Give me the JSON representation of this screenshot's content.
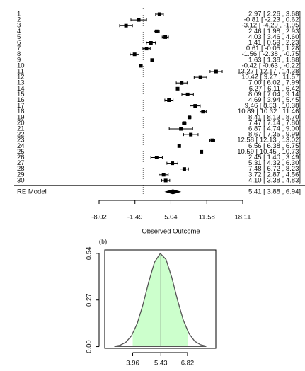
{
  "chart_data": [
    {
      "type": "forest",
      "categories": [
        "1",
        "2",
        "3",
        "4",
        "5",
        "6",
        "7",
        "8",
        "9",
        "10",
        "11",
        "12",
        "13",
        "14",
        "15",
        "16",
        "17",
        "18",
        "19",
        "20",
        "21",
        "22",
        "23",
        "24",
        "25",
        "26",
        "27",
        "28",
        "29",
        "30"
      ],
      "values": [
        2.97,
        -0.81,
        -3.12,
        2.46,
        4.03,
        1.41,
        0.61,
        -1.56,
        1.63,
        -0.42,
        13.27,
        10.42,
        7.0,
        6.27,
        8.09,
        4.69,
        9.46,
        10.89,
        8.41,
        7.47,
        6.87,
        8.67,
        12.58,
        6.56,
        10.59,
        2.45,
        5.31,
        7.48,
        3.72,
        4.1
      ],
      "lower": [
        2.26,
        -2.23,
        -4.29,
        1.98,
        3.46,
        0.59,
        -0.05,
        -2.38,
        1.38,
        -0.63,
        12.17,
        9.27,
        6.02,
        6.11,
        7.04,
        3.94,
        8.53,
        10.32,
        8.13,
        7.14,
        4.74,
        7.35,
        12.13,
        6.38,
        10.45,
        1.4,
        4.32,
        6.72,
        2.87,
        3.38
      ],
      "upper": [
        3.68,
        0.62,
        -1.95,
        2.93,
        4.6,
        2.23,
        1.28,
        -0.75,
        1.88,
        -0.22,
        14.38,
        11.57,
        7.99,
        6.42,
        9.14,
        5.45,
        10.38,
        11.46,
        8.7,
        7.8,
        9.0,
        9.99,
        13.02,
        6.75,
        10.73,
        3.49,
        6.3,
        8.23,
        4.56,
        4.83
      ],
      "value_labels": [
        "2.97 [ 2.26 , 3.68]",
        "-0.81 [ -2.23 , 0.62]",
        "-3.12 [ -4.29 , -1.95]",
        "2.46 [ 1.98 , 2.93]",
        "4.03 [ 3.46 , 4.60]",
        "1.41 [ 0.59 , 2.23]",
        "0.61 [ -0.05 , 1.28]",
        "-1.56 [ -2.38 , -0.75]",
        "1.63 [ 1.38 , 1.88]",
        "-0.42 [ -0.63 , -0.22]",
        "13.27 [ 12.17 , 14.38]",
        "10.42 [ 9.27 , 11.57]",
        "7.00 [ 6.02 , 7.99]",
        "6.27 [ 6.11 , 6.42]",
        "8.09 [ 7.04 , 9.14]",
        "4.69 [ 3.94 , 5.45]",
        "9.46 [ 8.53 , 10.38]",
        "10.89 [ 10.32 , 11.46]",
        "8.41 [ 8.13 , 8.70]",
        "7.47 [ 7.14 , 7.80]",
        "6.87 [ 4.74 , 9.00]",
        "8.67 [ 7.35 , 9.99]",
        "12.58 [ 12.13 , 13.02]",
        "6.56 [ 6.38 , 6.75]",
        "10.59 [ 10.45 , 10.73]",
        "2.45 [ 1.40 , 3.49]",
        "5.31 [ 4.32 , 6.30]",
        "7.48 [ 6.72 , 8.23]",
        "3.72 [ 2.87 , 4.56]",
        "4.10 [ 3.38 , 4.83]"
      ],
      "summary": {
        "label": "RE Model",
        "value": 5.41,
        "lower": 3.88,
        "upper": 6.94,
        "value_label": "5.41 [ 3.88 , 6.94]"
      },
      "refline": 0,
      "xlim": [
        -8.02,
        18.11
      ],
      "xticks": [
        -8.02,
        -1.49,
        5.04,
        11.58,
        18.11
      ],
      "xlabel": "Observed Outcome",
      "color": "#000000"
    },
    {
      "type": "density",
      "title": "(b)",
      "x": [
        3.0,
        3.3,
        3.6,
        3.9,
        4.2,
        4.5,
        4.8,
        5.1,
        5.4,
        5.7,
        6.0,
        6.3,
        6.6,
        6.9,
        7.2,
        7.5,
        7.8
      ],
      "values": [
        0.002,
        0.008,
        0.025,
        0.063,
        0.135,
        0.245,
        0.376,
        0.489,
        0.54,
        0.505,
        0.401,
        0.27,
        0.154,
        0.075,
        0.031,
        0.011,
        0.003
      ],
      "shade": [
        3.96,
        6.82
      ],
      "mean_line": 5.43,
      "fill": "#ccffcc",
      "color": "#555555",
      "xlim": [
        2.5,
        8.3
      ],
      "ylim": [
        -0.01,
        0.56
      ],
      "xticks": [
        3.96,
        5.43,
        6.82
      ],
      "yticks": [
        {
          "value": 0,
          "label": "0.00"
        },
        0.27,
        0.54
      ]
    }
  ]
}
